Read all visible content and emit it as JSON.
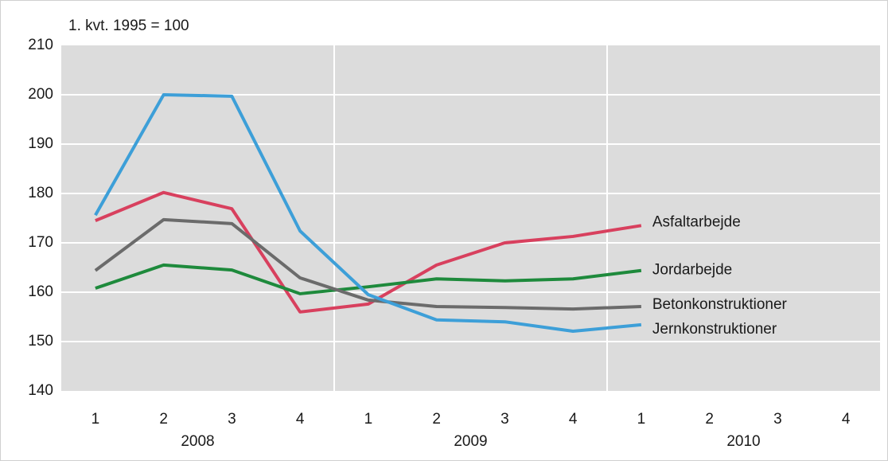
{
  "chart_data": {
    "type": "line",
    "subtitle": "1. kvt. 1995 = 100",
    "categories": [
      "1",
      "2",
      "3",
      "4",
      "1",
      "2",
      "3",
      "4",
      "1",
      "2",
      "3",
      "4"
    ],
    "groups": [
      "2008",
      "2009",
      "2010"
    ],
    "ylim": [
      140,
      210
    ],
    "yticks": [
      140,
      150,
      160,
      170,
      180,
      190,
      200,
      210
    ],
    "grid": true,
    "series": [
      {
        "name": "Asfaltarbejde",
        "color": "#d8405e",
        "values": [
          174.5,
          180.2,
          176.9,
          156.0,
          157.6,
          165.5,
          170.0,
          171.3,
          173.5,
          null,
          null,
          null
        ]
      },
      {
        "name": "Jordarbejde",
        "color": "#1e8a3c",
        "values": [
          160.8,
          165.5,
          164.5,
          159.7,
          161.1,
          162.7,
          162.3,
          162.7,
          164.4,
          null,
          null,
          null
        ]
      },
      {
        "name": "Betonkonstruktioner",
        "color": "#6b6b6b",
        "values": [
          164.4,
          174.7,
          173.9,
          162.9,
          158.4,
          157.1,
          156.9,
          156.6,
          157.1,
          null,
          null,
          null
        ]
      },
      {
        "name": "Jernkonstruktioner",
        "color": "#3d9fd8",
        "values": [
          175.6,
          200.0,
          199.7,
          172.4,
          159.5,
          154.4,
          154.0,
          152.1,
          153.4,
          null,
          null,
          null
        ]
      }
    ]
  }
}
